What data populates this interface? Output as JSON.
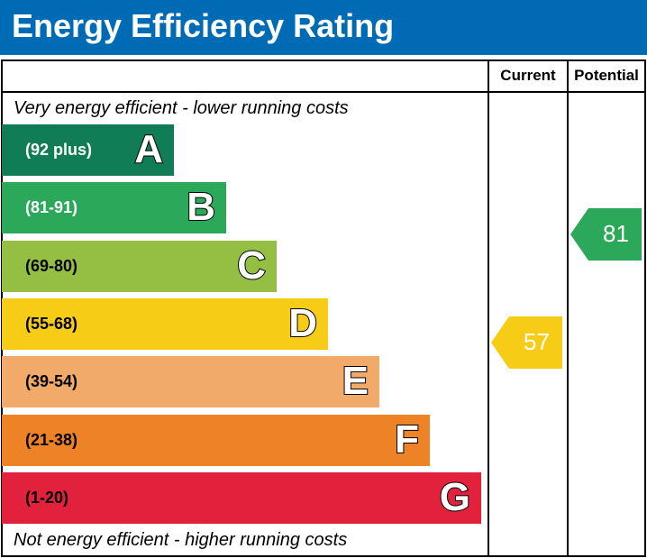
{
  "title": "Energy Efficiency Rating",
  "columns": {
    "current": "Current",
    "potential": "Potential"
  },
  "top_note": "Very energy efficient - lower running costs",
  "bottom_note": "Not energy efficient - higher running costs",
  "chart_data": {
    "type": "bar",
    "title": "Energy Efficiency Rating",
    "bands": [
      {
        "letter": "A",
        "range": "(92 plus)",
        "color": "#117d57",
        "text_color": "#ffffff"
      },
      {
        "letter": "B",
        "range": "(81-91)",
        "color": "#2ca85b",
        "text_color": "#ffffff"
      },
      {
        "letter": "C",
        "range": "(69-80)",
        "color": "#95bf43",
        "text_color": "#000000"
      },
      {
        "letter": "D",
        "range": "(55-68)",
        "color": "#f6cc16",
        "text_color": "#000000"
      },
      {
        "letter": "E",
        "range": "(39-54)",
        "color": "#f2aa6b",
        "text_color": "#000000"
      },
      {
        "letter": "F",
        "range": "(21-38)",
        "color": "#ee8227",
        "text_color": "#000000"
      },
      {
        "letter": "G",
        "range": "(1-20)",
        "color": "#e2223c",
        "text_color": "#000000"
      }
    ],
    "current": {
      "value": "57",
      "band": "D",
      "color": "#f6cc16"
    },
    "potential": {
      "value": "81",
      "band": "B",
      "color": "#2ca85b"
    }
  }
}
